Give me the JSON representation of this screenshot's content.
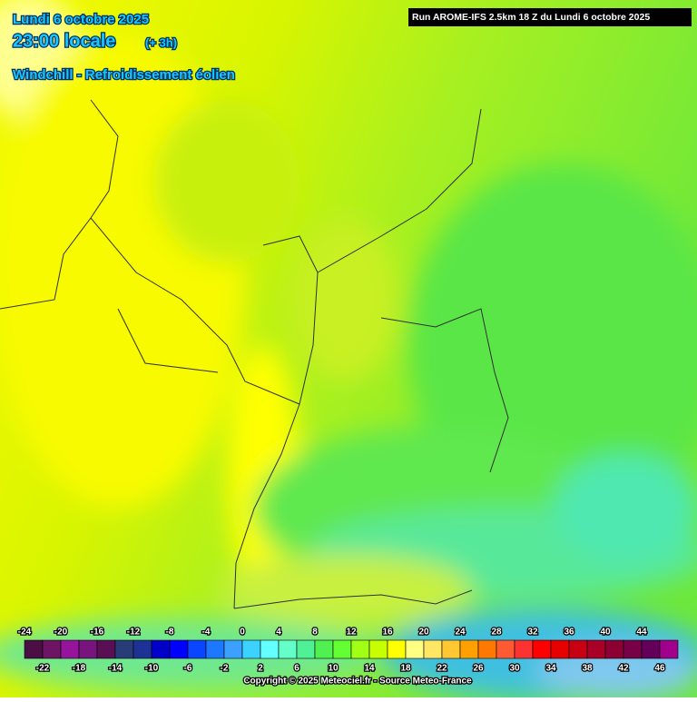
{
  "header": {
    "date": "Lundi 6 octobre 2025",
    "time": "23:00 locale",
    "offset": "(+ 3h)",
    "parameter": "Windchill - Refroidissement éolien",
    "run": "Run AROME-IFS 2.5km 18 Z du Lundi 6 octobre 2025"
  },
  "legend": {
    "upper_labels": [
      -24,
      -20,
      -16,
      -12,
      -8,
      -4,
      0,
      4,
      8,
      12,
      16,
      20,
      24,
      28,
      32,
      36,
      40,
      44
    ],
    "lower_labels": [
      -22,
      -18,
      -14,
      -10,
      -6,
      -2,
      2,
      6,
      10,
      14,
      18,
      22,
      26,
      30,
      34,
      38,
      42,
      46
    ],
    "colors": [
      "#4b0f46",
      "#6e1464",
      "#96149b",
      "#78147d",
      "#5a0f55",
      "#283c78",
      "#1e3296",
      "#0000c8",
      "#0000ff",
      "#0a46ff",
      "#1e78ff",
      "#3ca0ff",
      "#3cd2ff",
      "#64ffff",
      "#64ffc8",
      "#50f096",
      "#50f050",
      "#64ff32",
      "#a0ff14",
      "#c8ff00",
      "#ffff00",
      "#ffff82",
      "#ffe664",
      "#ffc832",
      "#ffa000",
      "#ff7800",
      "#ff5a32",
      "#ff3232",
      "#ff0000",
      "#e60000",
      "#c80014",
      "#aa0028",
      "#8c0032",
      "#780046",
      "#64005a",
      "#a0008c"
    ]
  },
  "footer": {
    "copyright": "Copyright © 2025 Meteociel.fr - Source Meteo-France"
  }
}
